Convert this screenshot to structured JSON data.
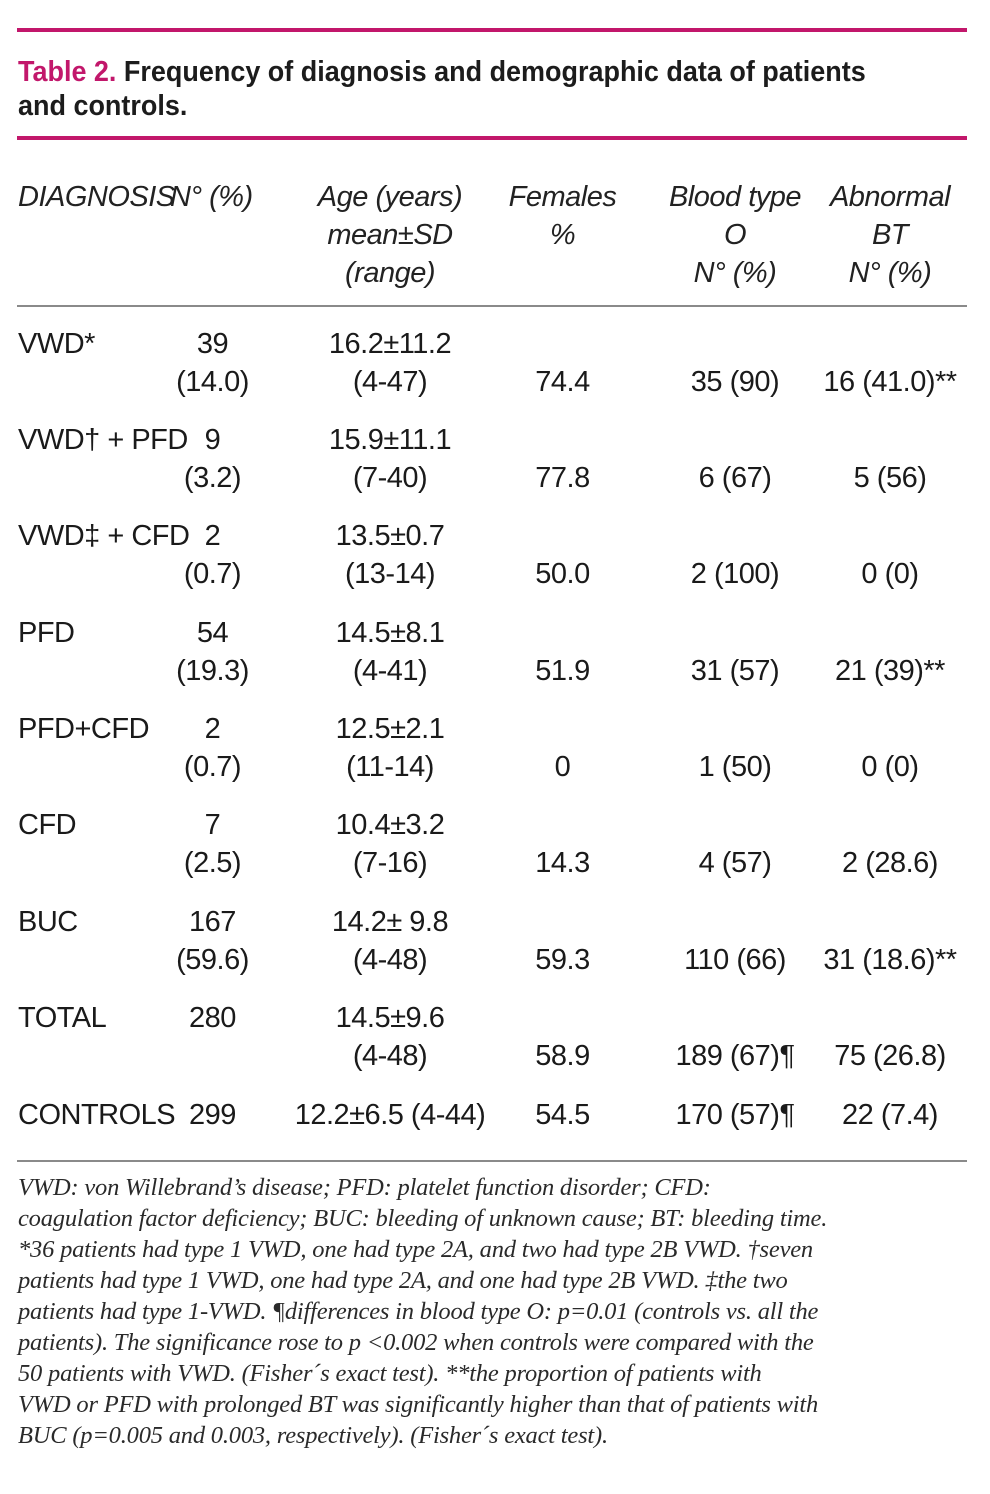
{
  "colors": {
    "accent": "#c2176b",
    "rule_gray": "#8a8a8a"
  },
  "title": {
    "lead": "Table 2.",
    "text": " Frequency of diagnosis and demographic data of patients and controls."
  },
  "headers": {
    "diagnosis": "DIAGNOSIS",
    "n": "N° (%)",
    "age": [
      "Age (years)",
      "mean±SD",
      "(range)"
    ],
    "females": [
      "Females",
      "%"
    ],
    "blood": [
      "Blood type",
      "O",
      "N° (%)"
    ],
    "bt": [
      "Abnormal",
      "BT",
      "N° (%)"
    ]
  },
  "rows": [
    {
      "diagnosis": "VWD*",
      "n": "39",
      "pct": "(14.0)",
      "age": "16.2±11.2",
      "range": "(4-47)",
      "females": "74.4",
      "blood": "35 (90)",
      "bt": "16 (41.0)**"
    },
    {
      "diagnosis": "VWD† + PFD",
      "n": "9",
      "pct": "(3.2)",
      "age": "15.9±11.1",
      "range": "(7-40)",
      "females": "77.8",
      "blood": "6 (67)",
      "bt": "5 (56)"
    },
    {
      "diagnosis": "VWD‡ + CFD",
      "n": "2",
      "pct": "(0.7)",
      "age": "13.5±0.7",
      "range": "(13-14)",
      "females": "50.0",
      "blood": "2 (100)",
      "bt": "0 (0)"
    },
    {
      "diagnosis": "PFD",
      "n": "54",
      "pct": "(19.3)",
      "age": "14.5±8.1",
      "range": "(4-41)",
      "females": "51.9",
      "blood": "31 (57)",
      "bt": "21 (39)**"
    },
    {
      "diagnosis": "PFD+CFD",
      "n": "2",
      "pct": "(0.7)",
      "age": "12.5±2.1",
      "range": "(11-14)",
      "females": "0",
      "blood": "1 (50)",
      "bt": "0 (0)"
    },
    {
      "diagnosis": "CFD",
      "n": "7",
      "pct": "(2.5)",
      "age": "10.4±3.2",
      "range": "(7-16)",
      "females": "14.3",
      "blood": "4 (57)",
      "bt": "2 (28.6)"
    },
    {
      "diagnosis": "BUC",
      "n": "167",
      "pct": "(59.6)",
      "age": "14.2± 9.8",
      "range": "(4-48)",
      "females": "59.3",
      "blood": "110 (66)",
      "bt": "31 (18.6)**"
    },
    {
      "diagnosis": "TOTAL",
      "n": "280",
      "pct": "",
      "age": "14.5±9.6",
      "range": "(4-48)",
      "females": "58.9",
      "blood": "189 (67)¶",
      "bt": "75 (26.8)"
    }
  ],
  "controls": {
    "diagnosis": "CONTROLS",
    "n": "299",
    "age": "12.2±6.5 (4-44)",
    "females": "54.5",
    "blood": "170 (57)¶",
    "bt": "22 (7.4)"
  },
  "footnote_lines": [
    "VWD: von Willebrand’s disease; PFD: platelet function disorder; CFD:",
    "coagulation factor deficiency; BUC: bleeding of unknown cause; BT: bleeding time.",
    "*36 patients had type 1 VWD, one had type 2A, and two had type 2B VWD. †seven",
    "patients had type 1 VWD, one had type 2A, and one had type 2B VWD. ‡the two",
    "patients had type 1-VWD. ¶differences in blood type O: p=0.01 (controls vs. all the",
    "patients). The significance rose to p <0.002 when controls were compared with the",
    "50 patients with VWD. (Fisher´s exact test). **the proportion of patients with",
    "VWD or PFD with prolonged BT was significantly higher than that of patients with",
    "BUC (p=0.005 and 0.003, respectively). (Fisher´s exact test)."
  ]
}
